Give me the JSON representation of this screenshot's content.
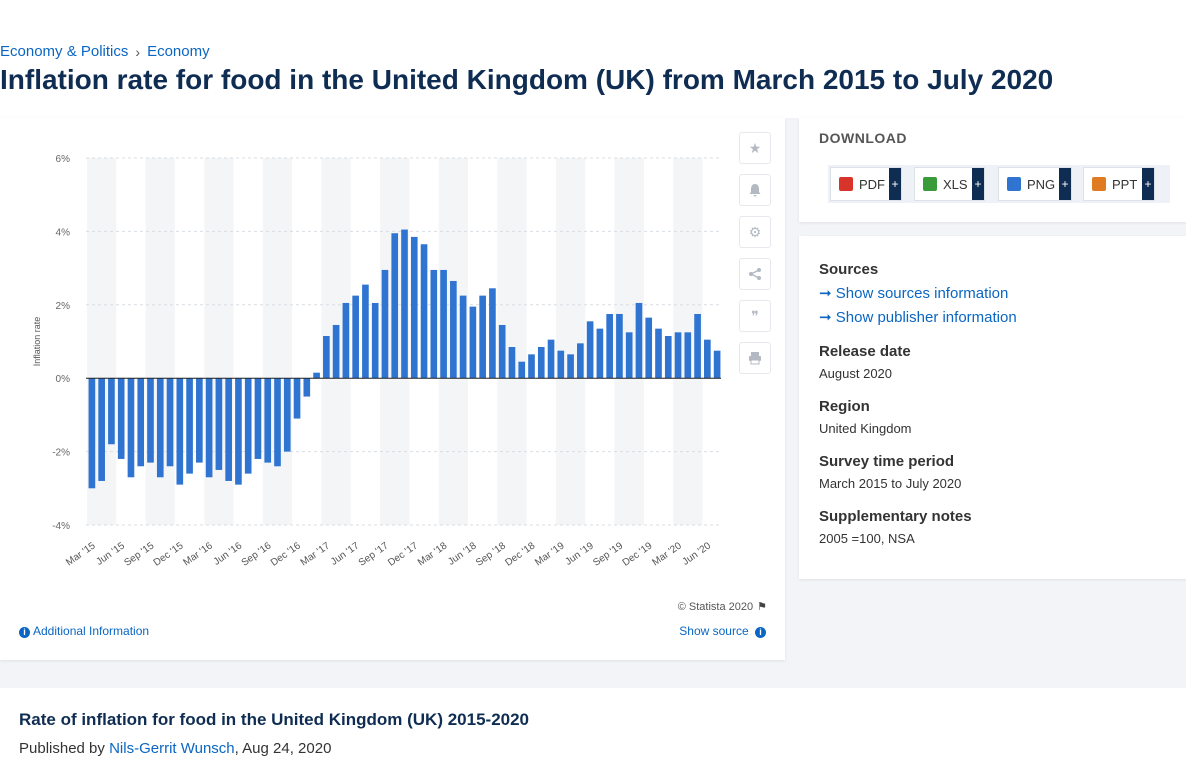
{
  "breadcrumb": {
    "item1": "Economy & Politics",
    "sep": "›",
    "item2": "Economy"
  },
  "page_title": "Inflation rate for food in the United Kingdom (UK) from March 2015 to July 2020",
  "chart": {
    "credit": "© Statista 2020",
    "additional_info": "Additional Information",
    "show_source": "Show source"
  },
  "chart_data": {
    "type": "bar",
    "ylabel": "Inflation rate",
    "ylim": [
      -4,
      6
    ],
    "ytick_labels": [
      "6%",
      "4%",
      "2%",
      "0%",
      "-2%",
      "-4%"
    ],
    "yticks": [
      6,
      4,
      2,
      0,
      -2,
      -4
    ],
    "xtick_labels": [
      "Mar '15",
      "Jun '15",
      "Sep '15",
      "Dec '15",
      "Mar '16",
      "Jun '16",
      "Sep '16",
      "Dec '16",
      "Mar '17",
      "Jun '17",
      "Sep '17",
      "Dec '17",
      "Mar '18",
      "Jun '18",
      "Sep '18",
      "Dec '18",
      "Mar '19",
      "Jun '19",
      "Sep '19",
      "Dec '19",
      "Mar '20",
      "Jun '20"
    ],
    "bar_color": "#2f74d0",
    "values": [
      -3.0,
      -2.8,
      -1.8,
      -2.2,
      -2.7,
      -2.4,
      -2.3,
      -2.7,
      -2.4,
      -2.9,
      -2.6,
      -2.3,
      -2.7,
      -2.5,
      -2.8,
      -2.9,
      -2.6,
      -2.2,
      -2.3,
      -2.4,
      -2.0,
      -1.1,
      -0.5,
      0.15,
      1.15,
      1.45,
      2.05,
      2.25,
      2.55,
      2.05,
      2.95,
      3.95,
      4.05,
      3.85,
      3.65,
      2.95,
      2.95,
      2.65,
      2.25,
      1.95,
      2.25,
      2.45,
      1.45,
      0.85,
      0.45,
      0.65,
      0.85,
      1.05,
      0.75,
      0.65,
      0.95,
      1.55,
      1.35,
      1.75,
      1.75,
      1.25,
      2.05,
      1.65,
      1.35,
      1.15,
      1.25,
      1.25,
      1.75,
      1.05,
      0.75
    ]
  },
  "toolbar": {
    "star": "star-icon",
    "bell": "bell-icon",
    "gear": "gear-icon",
    "share": "share-icon",
    "quote": "quote-icon",
    "print": "print-icon"
  },
  "download": {
    "title": "DOWNLOAD",
    "buttons": [
      {
        "label": "PDF",
        "plus": "+",
        "color": "#d9342b"
      },
      {
        "label": "XLS",
        "plus": "+",
        "color": "#3a9b3a"
      },
      {
        "label": "PNG",
        "plus": "+",
        "color": "#2f74d0"
      },
      {
        "label": "PPT",
        "plus": "+",
        "color": "#e07b22"
      }
    ]
  },
  "meta": {
    "sources_head": "Sources",
    "show_sources": "Show sources information",
    "show_publisher": "Show publisher information",
    "release_head": "Release date",
    "release_val": "August 2020",
    "region_head": "Region",
    "region_val": "United Kingdom",
    "survey_head": "Survey time period",
    "survey_val": "March 2015 to July 2020",
    "notes_head": "Supplementary notes",
    "notes_val": "2005 =100, NSA"
  },
  "bottom": {
    "title": "Rate of inflation for food in the United Kingdom (UK) 2015-2020",
    "published_by": "Published by",
    "author": "Nils-Gerrit Wunsch",
    "date": ", Aug 24, 2020"
  }
}
